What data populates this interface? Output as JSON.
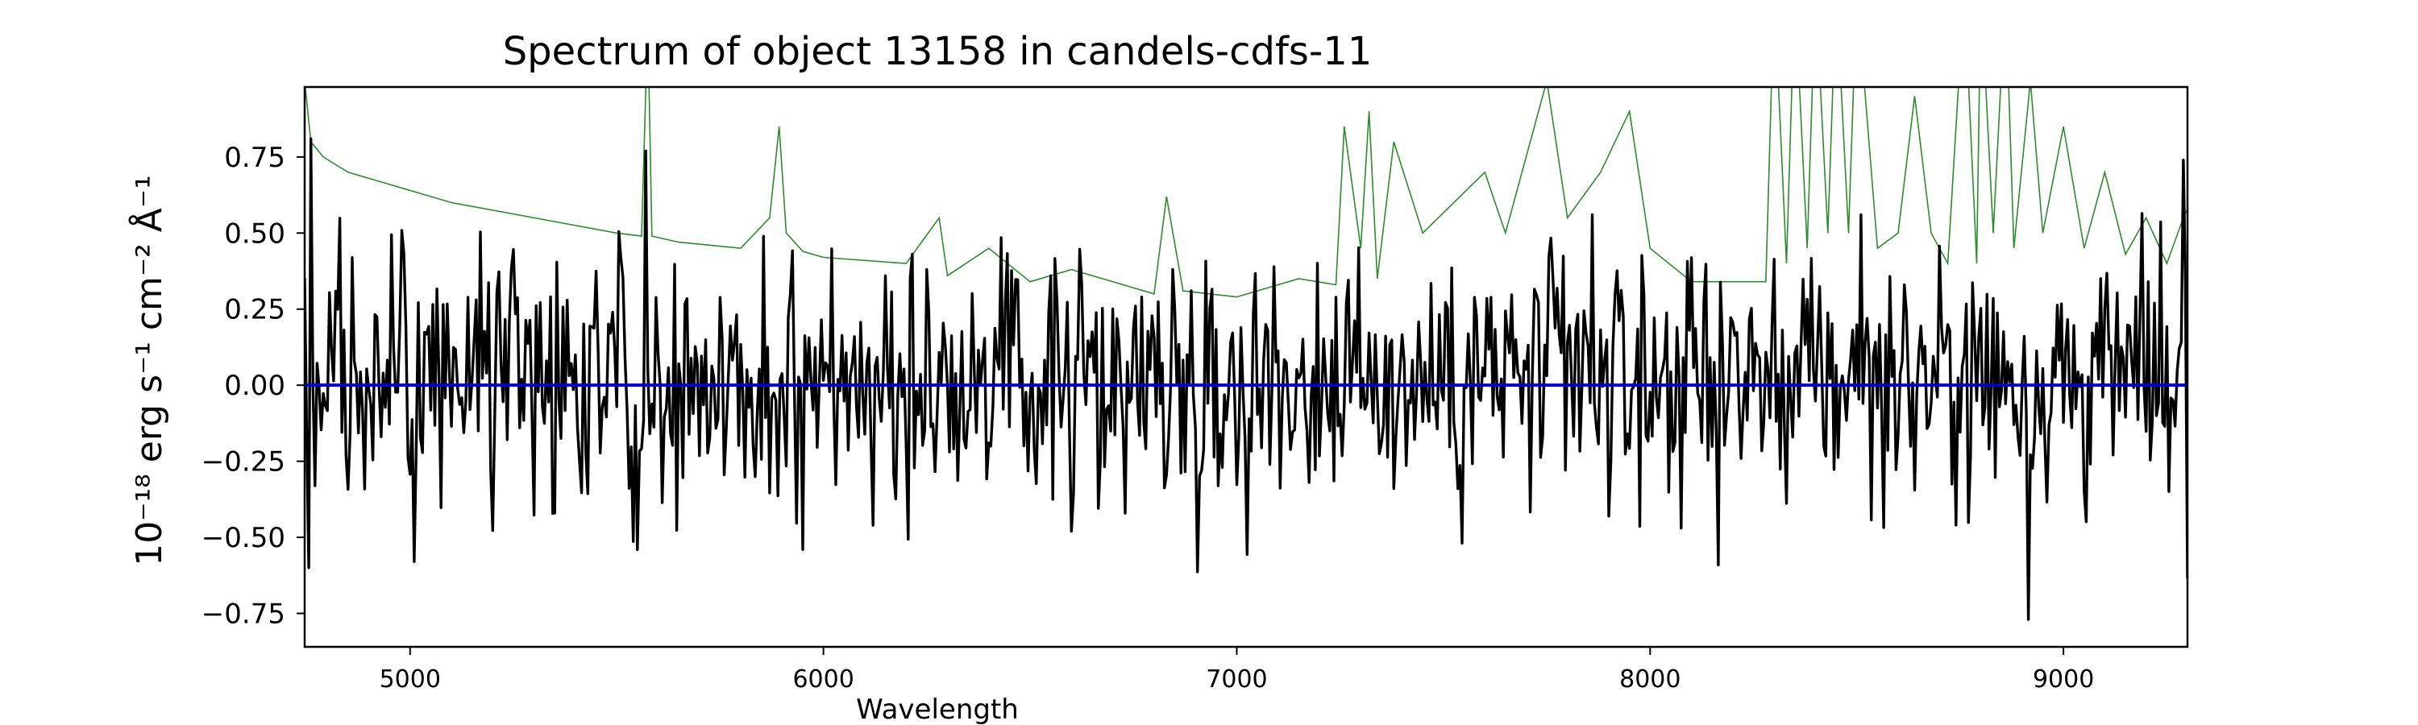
{
  "chart_data": {
    "type": "line",
    "title": "Spectrum of object 13158 in candels-cdfs-11",
    "xlabel": "Wavelength",
    "ylabel": "10⁻¹⁸ erg s⁻¹ cm⁻² Å⁻¹",
    "xlim": [
      4745,
      9300
    ],
    "ylim": [
      -0.86,
      0.98
    ],
    "xticks": [
      5000,
      6000,
      7000,
      8000,
      9000
    ],
    "xtick_labels": [
      "5000",
      "6000",
      "7000",
      "8000",
      "9000"
    ],
    "yticks": [
      0.75,
      0.5,
      0.25,
      0.0,
      -0.25,
      -0.5,
      -0.75
    ],
    "ytick_labels": [
      "0.75",
      "0.50",
      "0.25",
      "0.00",
      "−0.25",
      "−0.50",
      "−0.75"
    ],
    "grid": false,
    "series": [
      {
        "color": "#2e8b2e",
        "style": "thin line",
        "description": "error / noise spectrum",
        "x": [
          4745,
          4760,
          4790,
          4850,
          4950,
          5100,
          5300,
          5500,
          5560,
          5575,
          5585,
          5650,
          5800,
          5870,
          5893,
          5910,
          5950,
          6000,
          6200,
          6280,
          6300,
          6400,
          6500,
          6600,
          6800,
          6830,
          6870,
          7000,
          7150,
          7240,
          7260,
          7300,
          7320,
          7340,
          7380,
          7450,
          7600,
          7650,
          7750,
          7800,
          7880,
          7950,
          8000,
          8100,
          8280,
          8300,
          8330,
          8350,
          8380,
          8400,
          8430,
          8450,
          8480,
          8500,
          8550,
          8600,
          8640,
          8680,
          8720,
          8760,
          8790,
          8800,
          8830,
          8860,
          8880,
          8920,
          8950,
          9000,
          9050,
          9100,
          9150,
          9200,
          9250,
          9290,
          9300
        ],
        "y": [
          1.0,
          0.8,
          0.75,
          0.7,
          0.66,
          0.6,
          0.55,
          0.5,
          0.49,
          1.2,
          0.49,
          0.47,
          0.45,
          0.55,
          0.85,
          0.5,
          0.44,
          0.42,
          0.4,
          0.55,
          0.36,
          0.45,
          0.34,
          0.38,
          0.3,
          0.62,
          0.31,
          0.29,
          0.35,
          0.33,
          0.85,
          0.45,
          0.9,
          0.35,
          0.8,
          0.5,
          0.7,
          0.5,
          1.0,
          0.55,
          0.7,
          0.9,
          0.45,
          0.34,
          0.34,
          1.3,
          0.4,
          1.3,
          0.45,
          1.3,
          0.5,
          1.3,
          0.5,
          1.3,
          0.45,
          0.5,
          0.95,
          0.5,
          0.4,
          1.3,
          0.4,
          1.3,
          0.5,
          1.3,
          0.45,
          1.0,
          0.5,
          0.85,
          0.45,
          0.7,
          0.43,
          0.55,
          0.4,
          0.55,
          0.58
        ]
      },
      {
        "color": "#000000",
        "style": "thick line",
        "description": "flux spectrum",
        "x_start": 4745,
        "x_step": 5,
        "noise_seed": 13158,
        "stats": {
          "mean": 0.02,
          "std": 0.21,
          "min": -0.77,
          "max": 0.81
        },
        "notable_points": [
          [
            4760,
            0.81
          ],
          [
            4755,
            -0.6
          ],
          [
            5010,
            -0.58
          ],
          [
            5570,
            0.77
          ],
          [
            5950,
            -0.54
          ],
          [
            6250,
            0.38
          ],
          [
            6600,
            -0.48
          ],
          [
            8510,
            0.56
          ],
          [
            8915,
            -0.77
          ],
          [
            9290,
            0.74
          ]
        ]
      },
      {
        "color": "#0000cc",
        "style": "horizontal line",
        "description": "zero level",
        "x": [
          4745,
          9300
        ],
        "y": [
          0.0,
          0.0
        ]
      }
    ]
  }
}
